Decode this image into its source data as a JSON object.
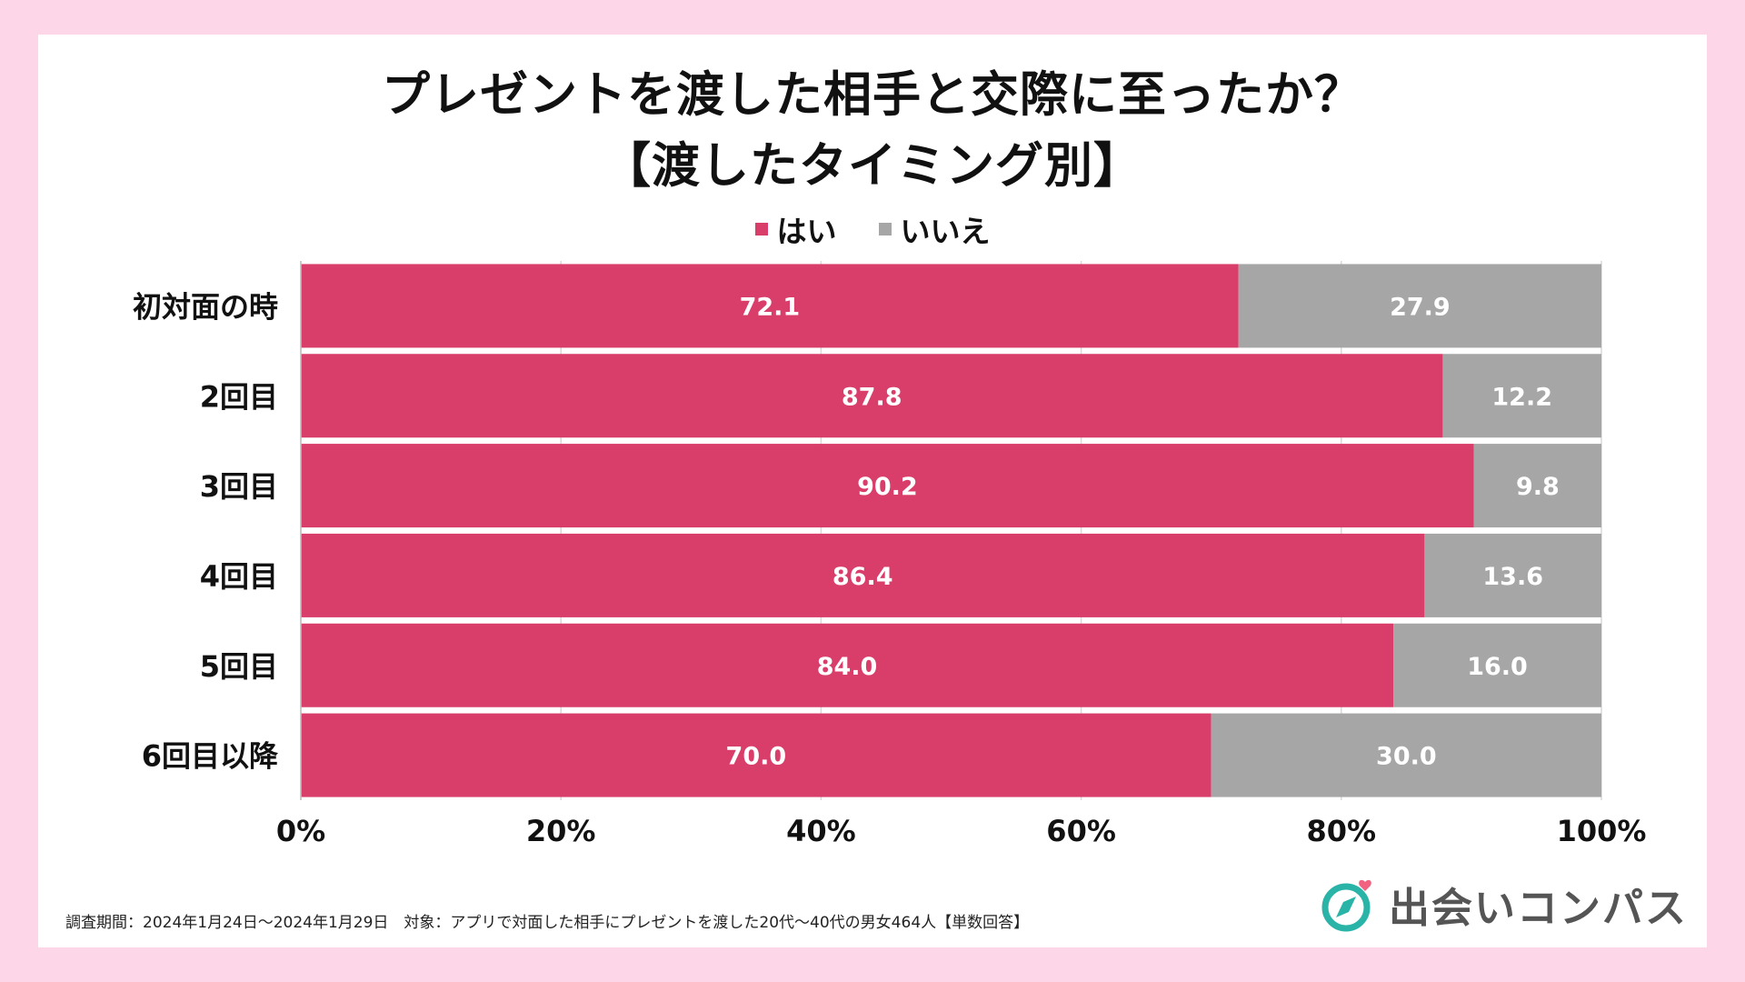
{
  "colors": {
    "page_background": "#fdd6e8",
    "yes": "#d93d6a",
    "no": "#a6a6a6",
    "brand_teal": "#2ab4a8",
    "brand_pink": "#f0627f"
  },
  "chart_data": {
    "type": "bar",
    "orientation": "horizontal",
    "stacked": true,
    "title": "プレゼントを渡した相手と交際に至ったか？",
    "subtitle": "【渡したタイミング別】",
    "categories": [
      "初対面の時",
      "2回目",
      "3回目",
      "4回目",
      "5回目",
      "6回目以降"
    ],
    "series": [
      {
        "name": "はい",
        "values": [
          72.1,
          87.8,
          90.2,
          86.4,
          84.0,
          70.0
        ]
      },
      {
        "name": "いいえ",
        "values": [
          27.9,
          12.2,
          9.8,
          13.6,
          16.0,
          30.0
        ]
      }
    ],
    "value_labels": [
      [
        "72.1",
        "87.8",
        "90.2",
        "86.4",
        "84.0",
        "70.0"
      ],
      [
        "27.9",
        "12.2",
        "9.8",
        "13.6",
        "16.0",
        "30.0"
      ]
    ],
    "xticks": [
      0,
      20,
      40,
      60,
      80,
      100
    ],
    "xtick_labels": [
      "0%",
      "20%",
      "40%",
      "60%",
      "80%",
      "100%"
    ],
    "xlim": [
      0,
      100
    ],
    "grid": true,
    "legend_position": "top-center"
  },
  "footnote": "調査期間：2024年1月24日～2024年1月29日　対象：アプリで対面した相手にプレゼントを渡した20代～40代の男女464人【単数回答】",
  "brand": {
    "name": "出会いコンパス",
    "icon": "compass-heart-icon"
  }
}
